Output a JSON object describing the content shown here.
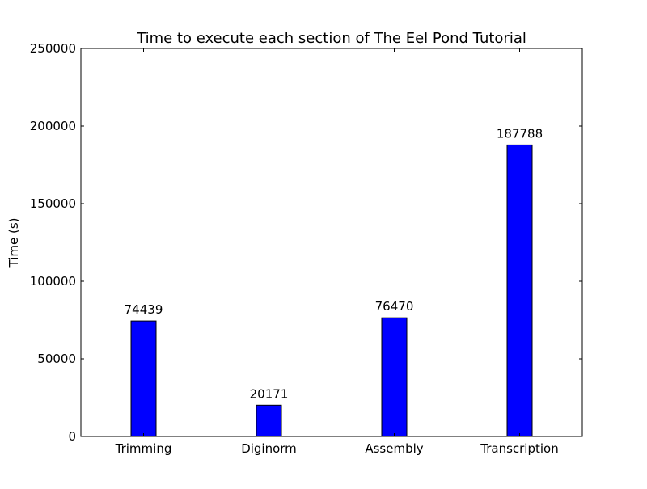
{
  "colors": {
    "bar_fill": "#0000ff",
    "bar_edge": "#000000",
    "axes": "#000000",
    "background": "#ffffff"
  },
  "chart_data": {
    "type": "bar",
    "title": "Time to execute each section of The Eel Pond Tutorial",
    "xlabel": "",
    "ylabel": "Time (s)",
    "categories": [
      "Trimming",
      "Diginorm",
      "Assembly",
      "Transcription"
    ],
    "values": [
      74439,
      20171,
      76470,
      187788
    ],
    "data_labels": [
      "74439",
      "20171",
      "76470",
      "187788"
    ],
    "ylim": [
      0,
      250000
    ],
    "yticks": [
      0,
      50000,
      100000,
      150000,
      200000,
      250000
    ],
    "ytick_labels": [
      "0",
      "50000",
      "100000",
      "150000",
      "200000",
      "250000"
    ],
    "grid": false,
    "legend": "none"
  }
}
